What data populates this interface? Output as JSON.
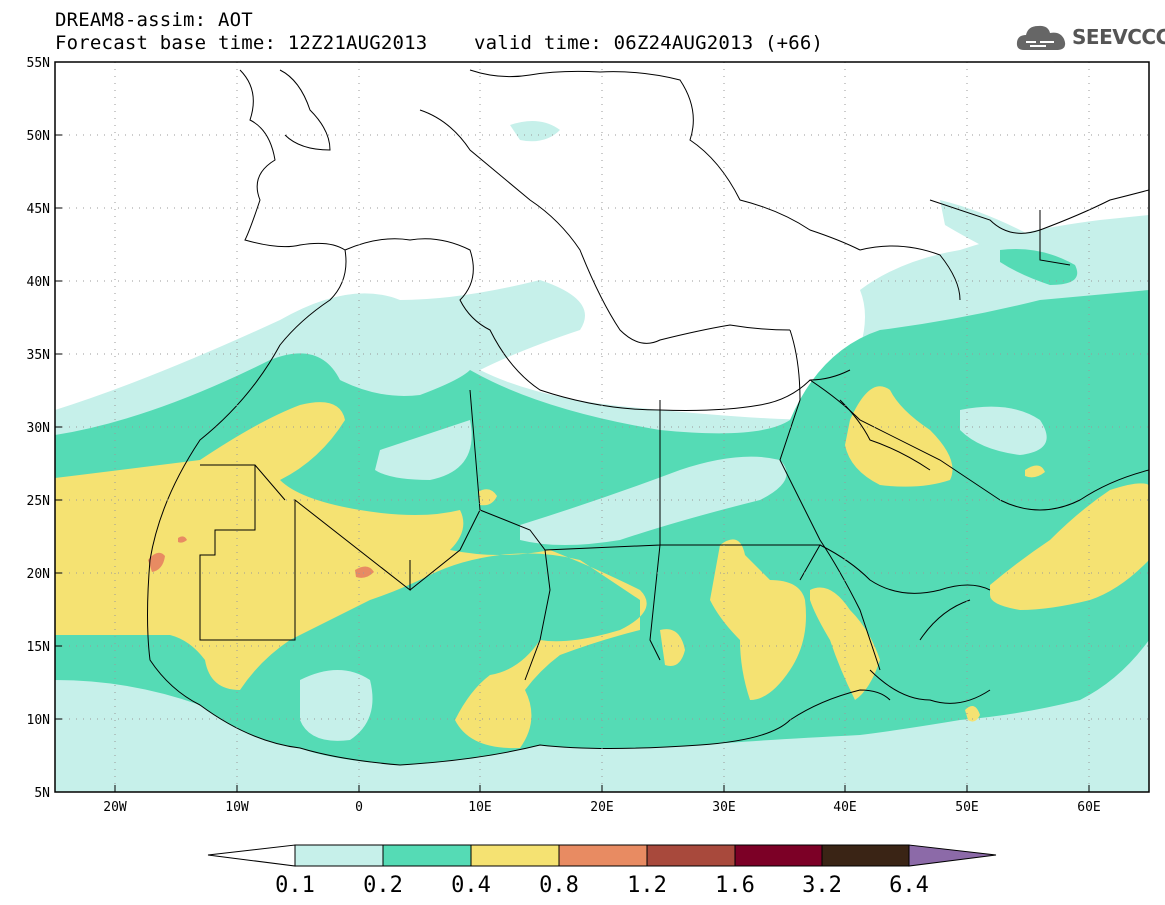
{
  "header": {
    "title_line1": "DREAM8-assim: AOT",
    "title_line2": "Forecast base time: 12Z21AUG2013    valid time: 06Z24AUG2013 (+66)",
    "logo_text": "SEEVCCC"
  },
  "map": {
    "lat_labels": [
      "55N",
      "50N",
      "45N",
      "40N",
      "35N",
      "30N",
      "25N",
      "20N",
      "15N",
      "10N",
      "5N"
    ],
    "lon_labels": [
      "20W",
      "10W",
      "0",
      "10E",
      "20E",
      "30E",
      "40E",
      "50E",
      "60E"
    ],
    "lat_range": [
      5,
      55
    ],
    "lon_range": [
      -25,
      65
    ],
    "grid": "dotted"
  },
  "colorbar": {
    "labels": [
      "0.1",
      "0.2",
      "0.4",
      "0.8",
      "1.2",
      "1.6",
      "3.2",
      "6.4"
    ],
    "colors": [
      "#ffffff",
      "#c6f0ea",
      "#55dbb5",
      "#f5e272",
      "#e88b62",
      "#a8493c",
      "#7c0026",
      "#3a2415",
      "#8c6aa8"
    ]
  },
  "colors": {
    "level_0_1": "#c6f0ea",
    "level_0_2": "#55dbb5",
    "level_0_4": "#f5e272",
    "level_0_8": "#e88b62"
  }
}
